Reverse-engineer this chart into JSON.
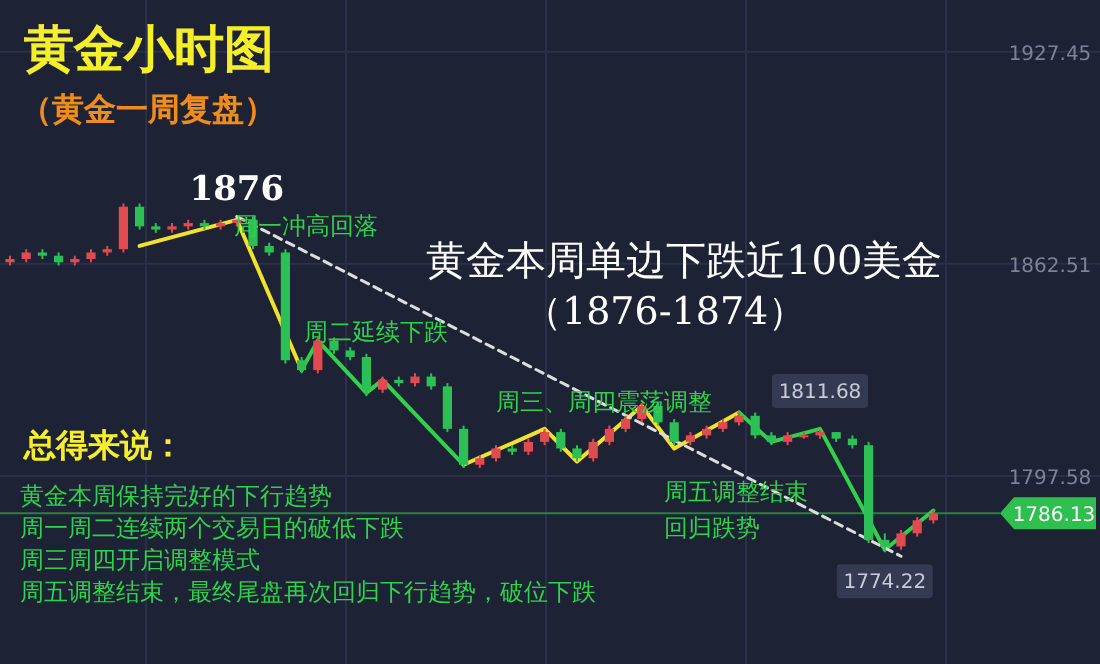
{
  "chart_data": {
    "type": "candlestick",
    "title": "黄金小时图",
    "subtitle": "（黄金一周复盘）",
    "categories": [
      null,
      null,
      null,
      null,
      null,
      null,
      null,
      null,
      null,
      null,
      null,
      null,
      null,
      null,
      null,
      null,
      null,
      null,
      null,
      null,
      null,
      null,
      null,
      null,
      null,
      null,
      null,
      null,
      null,
      null,
      null,
      null,
      null,
      null,
      null,
      null,
      null,
      null,
      null,
      null,
      null,
      null,
      null,
      null,
      null,
      null,
      null,
      null,
      null,
      null,
      null,
      null,
      null,
      null,
      null,
      null,
      null,
      null
    ],
    "ohlc": [
      [
        1863,
        1865,
        1862,
        1864
      ],
      [
        1864,
        1867,
        1863,
        1866
      ],
      [
        1866,
        1867,
        1864,
        1865
      ],
      [
        1865,
        1866,
        1862,
        1863
      ],
      [
        1863,
        1865,
        1862,
        1864
      ],
      [
        1864,
        1867,
        1863,
        1866
      ],
      [
        1866,
        1868,
        1865,
        1867
      ],
      [
        1867,
        1881,
        1866,
        1880
      ],
      [
        1880,
        1881,
        1873,
        1874
      ],
      [
        1874,
        1875,
        1872,
        1873
      ],
      [
        1873,
        1875,
        1872,
        1874
      ],
      [
        1874,
        1876,
        1873,
        1875
      ],
      [
        1875,
        1876,
        1873,
        1874
      ],
      [
        1874,
        1876,
        1873,
        1875
      ],
      [
        1875,
        1876,
        1874,
        1876
      ],
      [
        1876,
        1877,
        1867,
        1868
      ],
      [
        1868,
        1869,
        1865,
        1866
      ],
      [
        1866,
        1867,
        1832,
        1833
      ],
      [
        1833,
        1834,
        1829,
        1830
      ],
      [
        1830,
        1840,
        1829,
        1839
      ],
      [
        1839,
        1840,
        1835,
        1836
      ],
      [
        1836,
        1837,
        1833,
        1834
      ],
      [
        1834,
        1835,
        1822,
        1824
      ],
      [
        1824,
        1828,
        1823,
        1827
      ],
      [
        1827,
        1828,
        1825,
        1826
      ],
      [
        1826,
        1829,
        1825,
        1828
      ],
      [
        1828,
        1829,
        1824,
        1825
      ],
      [
        1825,
        1826,
        1811,
        1812
      ],
      [
        1812,
        1813,
        1800,
        1801
      ],
      [
        1801,
        1804,
        1800,
        1803
      ],
      [
        1803,
        1807,
        1802,
        1806
      ],
      [
        1806,
        1807,
        1804,
        1805
      ],
      [
        1805,
        1809,
        1804,
        1808
      ],
      [
        1808,
        1812,
        1807,
        1811
      ],
      [
        1811,
        1812,
        1805,
        1806
      ],
      [
        1806,
        1807,
        1802,
        1803
      ],
      [
        1803,
        1809,
        1802,
        1808
      ],
      [
        1808,
        1813,
        1807,
        1812
      ],
      [
        1812,
        1816,
        1811,
        1815
      ],
      [
        1815,
        1820,
        1814,
        1819
      ],
      [
        1819,
        1820,
        1813,
        1814
      ],
      [
        1814,
        1815,
        1807,
        1808
      ],
      [
        1808,
        1811,
        1807,
        1810
      ],
      [
        1810,
        1813,
        1809,
        1812
      ],
      [
        1812,
        1815,
        1811,
        1814
      ],
      [
        1814,
        1817,
        1813,
        1816
      ],
      [
        1816,
        1817,
        1809,
        1810
      ],
      [
        1810,
        1811,
        1807,
        1808
      ],
      [
        1808,
        1811,
        1807,
        1810
      ],
      [
        1810,
        1811,
        1809,
        1810
      ],
      [
        1810,
        1811.68,
        1809,
        1811
      ],
      [
        1811,
        1811,
        1808,
        1809
      ],
      [
        1809,
        1810,
        1806,
        1807
      ],
      [
        1807,
        1808,
        1777,
        1778
      ],
      [
        1778,
        1780,
        1774.22,
        1776
      ],
      [
        1776,
        1781,
        1775,
        1780
      ],
      [
        1780,
        1785,
        1779,
        1784
      ],
      [
        1784,
        1787,
        1783,
        1786.13
      ]
    ],
    "series": [
      {
        "type": "line",
        "values": [
          null,
          null,
          null,
          null,
          null,
          null,
          null,
          null,
          1868,
          null,
          null,
          null,
          null,
          null,
          1876,
          null,
          null,
          null,
          1830,
          null,
          null,
          null,
          null,
          null,
          null,
          null,
          null,
          null,
          null,
          null,
          null,
          null,
          null,
          null,
          null,
          null,
          null,
          null,
          null,
          null,
          null,
          null,
          null,
          null,
          null,
          null,
          null,
          null,
          null,
          null,
          null,
          null,
          null,
          null,
          null,
          null,
          null,
          null
        ],
        "color": "#f2e22c"
      },
      {
        "type": "line",
        "values": [
          null,
          null,
          null,
          null,
          null,
          null,
          null,
          null,
          null,
          null,
          null,
          null,
          null,
          null,
          null,
          null,
          null,
          null,
          1830,
          1839,
          null,
          null,
          1823,
          1827,
          null,
          null,
          null,
          null,
          1801,
          null,
          null,
          null,
          null,
          null,
          null,
          null,
          null,
          null,
          null,
          null,
          null,
          null,
          null,
          null,
          null,
          null,
          null,
          null,
          null,
          null,
          null,
          null,
          null,
          null,
          null,
          null,
          null,
          null
        ],
        "color": "#2fd24a"
      },
      {
        "type": "line",
        "values": [
          null,
          null,
          null,
          null,
          null,
          null,
          null,
          null,
          null,
          null,
          null,
          null,
          null,
          null,
          null,
          null,
          null,
          null,
          null,
          null,
          null,
          null,
          null,
          null,
          null,
          null,
          null,
          null,
          1801,
          null,
          null,
          null,
          null,
          1812,
          null,
          1802,
          null,
          null,
          null,
          1819,
          null,
          1806,
          null,
          null,
          null,
          1817,
          null,
          null,
          null,
          null,
          null,
          null,
          null,
          null,
          null,
          null,
          null,
          null
        ],
        "color": "#f2e22c"
      },
      {
        "type": "line",
        "values": [
          null,
          null,
          null,
          null,
          null,
          null,
          null,
          null,
          null,
          null,
          null,
          null,
          null,
          null,
          null,
          null,
          null,
          null,
          null,
          null,
          null,
          null,
          null,
          null,
          null,
          null,
          null,
          null,
          null,
          null,
          null,
          null,
          null,
          null,
          null,
          null,
          null,
          null,
          null,
          null,
          null,
          null,
          null,
          null,
          null,
          1817,
          null,
          1808,
          null,
          null,
          1812,
          null,
          null,
          null,
          1775,
          null,
          null,
          1787
        ],
        "color": "#2fd24a"
      },
      {
        "type": "line",
        "values": [
          null,
          null,
          null,
          null,
          null,
          null,
          null,
          null,
          null,
          null,
          null,
          null,
          null,
          null,
          1877,
          null,
          null,
          null,
          null,
          null,
          null,
          null,
          null,
          null,
          null,
          null,
          null,
          null,
          null,
          null,
          null,
          null,
          null,
          null,
          null,
          null,
          null,
          null,
          null,
          null,
          null,
          null,
          null,
          null,
          null,
          null,
          null,
          null,
          null,
          null,
          null,
          null,
          null,
          null,
          null,
          1773,
          null,
          null
        ],
        "color": "#dddddd",
        "line_style": "dashed"
      }
    ],
    "ylim": [
      1740,
      1943.3
    ],
    "yticks": [
      1927.45,
      1862.51,
      1797.58
    ],
    "tick_labels": "y",
    "grid": true,
    "ref_lines": [
      {
        "axis": "y",
        "value": 1786.13,
        "label": "1786.13",
        "color": "#2fbf4f"
      }
    ],
    "annotations": [
      {
        "text": "1876",
        "y": 1876
      },
      {
        "text": "1811.68",
        "y": 1811.68
      },
      {
        "text": "1774.22",
        "y": 1774.22
      },
      "周一冲高回落",
      "周二延续下跌",
      "周三、周四震荡调整",
      "周五调整结束",
      "回归跌势",
      "黄金本周单边下跌近100美金",
      "（1876-1874）",
      "总得来说：",
      "黄金本周保持完好的下行趋势",
      "周一周二连续两个交易日的破低下跌",
      "周三周四开启调整模式",
      "周五调整结束，最终尾盘再次回归下行趋势，破位下跌"
    ]
  }
}
